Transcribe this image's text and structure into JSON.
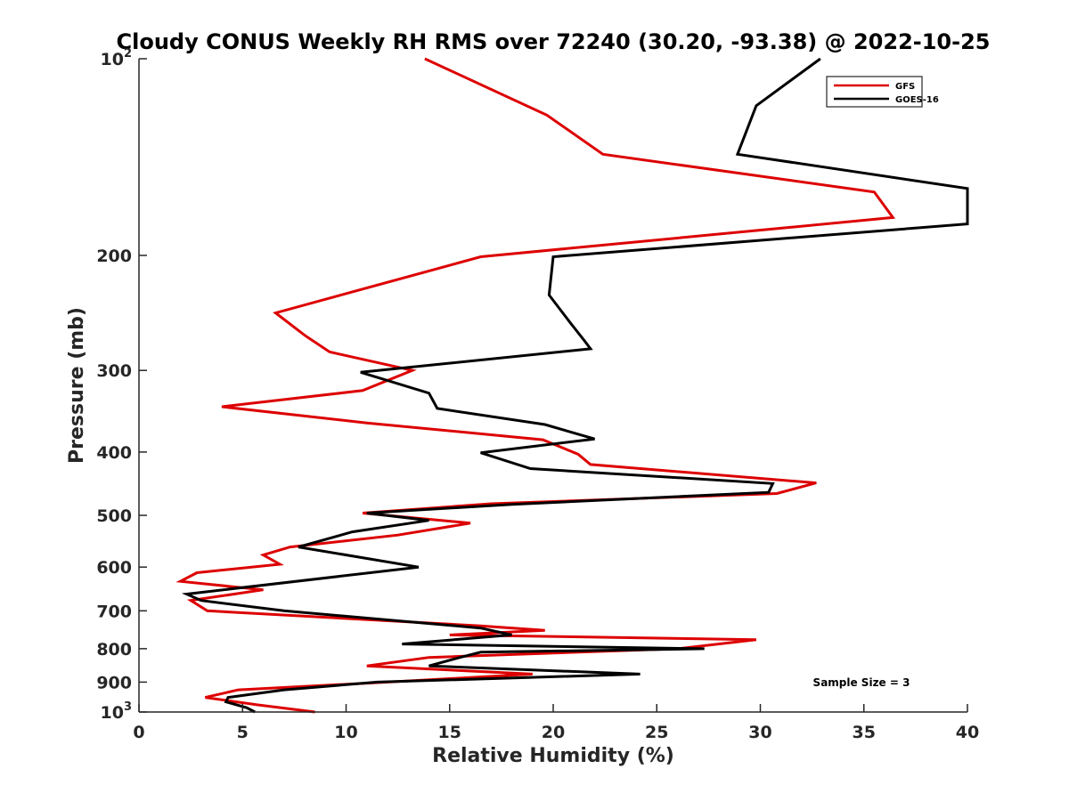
{
  "chart_data": {
    "type": "line",
    "title": "Cloudy CONUS Weekly RH RMS over 72240 (30.20, -93.38) @ 2022-10-25",
    "xlabel": "Relative Humidity (%)",
    "ylabel": "Pressure (mb)",
    "xlim": [
      0,
      40
    ],
    "ylim": [
      100,
      1000
    ],
    "yscale": "log",
    "y_reversed": true,
    "xticks": [
      0,
      5,
      10,
      15,
      20,
      25,
      30,
      35,
      40
    ],
    "xtick_labels": [
      "0",
      "5",
      "10",
      "15",
      "20",
      "25",
      "30",
      "35",
      "40"
    ],
    "yticks": [
      {
        "value": 100,
        "base": "10",
        "exp": "2"
      },
      {
        "value": 200,
        "base": "200",
        "exp": ""
      },
      {
        "value": 300,
        "base": "300",
        "exp": ""
      },
      {
        "value": 400,
        "base": "400",
        "exp": ""
      },
      {
        "value": 500,
        "base": "500",
        "exp": ""
      },
      {
        "value": 600,
        "base": "600",
        "exp": ""
      },
      {
        "value": 700,
        "base": "700",
        "exp": ""
      },
      {
        "value": 800,
        "base": "800",
        "exp": ""
      },
      {
        "value": 900,
        "base": "900",
        "exp": ""
      },
      {
        "value": 1000,
        "base": "10",
        "exp": "3"
      }
    ],
    "legend": {
      "location": "top-right"
    },
    "annotation": "Sample Size = 3",
    "series": [
      {
        "name": "GFS",
        "color": "#dd0000",
        "points": [
          [
            8.5,
            1000
          ],
          [
            5.7,
            975
          ],
          [
            3.2,
            950
          ],
          [
            4.8,
            925
          ],
          [
            12.0,
            900
          ],
          [
            19.0,
            875
          ],
          [
            11.0,
            850
          ],
          [
            14.0,
            825
          ],
          [
            26.0,
            800
          ],
          [
            29.8,
            775
          ],
          [
            15.0,
            762
          ],
          [
            19.6,
            750
          ],
          [
            16.5,
            738
          ],
          [
            3.3,
            700
          ],
          [
            2.5,
            675
          ],
          [
            6.0,
            650
          ],
          [
            2.0,
            631
          ],
          [
            2.8,
            612
          ],
          [
            6.8,
            594
          ],
          [
            6.0,
            575
          ],
          [
            7.3,
            559
          ],
          [
            12.5,
            536
          ],
          [
            16.0,
            514
          ],
          [
            10.8,
            496
          ],
          [
            17.0,
            480
          ],
          [
            30.8,
            463
          ],
          [
            32.7,
            446
          ],
          [
            21.8,
            418
          ],
          [
            21.2,
            403
          ],
          [
            19.5,
            383
          ],
          [
            11.0,
            361
          ],
          [
            4.0,
            341
          ],
          [
            10.8,
            322
          ],
          [
            13.2,
            300
          ],
          [
            9.2,
            281
          ],
          [
            8.0,
            265
          ],
          [
            6.6,
            245
          ],
          [
            16.5,
            201
          ],
          [
            36.4,
            175
          ],
          [
            35.5,
            160
          ],
          [
            22.4,
            140
          ],
          [
            19.7,
            122
          ],
          [
            13.8,
            100
          ]
        ]
      },
      {
        "name": "GOES-16",
        "color": "#000000",
        "points": [
          [
            5.6,
            1000
          ],
          [
            5.2,
            985
          ],
          [
            4.2,
            965
          ],
          [
            4.3,
            950
          ],
          [
            7.0,
            925
          ],
          [
            11.5,
            900
          ],
          [
            24.2,
            875
          ],
          [
            14.0,
            850
          ],
          [
            15.5,
            825
          ],
          [
            16.5,
            810
          ],
          [
            27.3,
            800
          ],
          [
            12.7,
            787
          ],
          [
            18.0,
            762
          ],
          [
            16.5,
            744
          ],
          [
            7.0,
            700
          ],
          [
            3.0,
            675
          ],
          [
            2.3,
            660
          ],
          [
            13.5,
            600
          ],
          [
            7.7,
            559
          ],
          [
            10.3,
            530
          ],
          [
            14.0,
            509
          ],
          [
            11.0,
            496
          ],
          [
            18.0,
            481
          ],
          [
            30.4,
            461
          ],
          [
            30.6,
            447
          ],
          [
            18.9,
            424
          ],
          [
            16.5,
            401
          ],
          [
            22.0,
            382
          ],
          [
            19.6,
            363
          ],
          [
            14.4,
            343
          ],
          [
            14.0,
            325
          ],
          [
            10.7,
            302
          ],
          [
            21.8,
            278
          ],
          [
            21.5,
            270
          ],
          [
            20.8,
            253
          ],
          [
            19.8,
            230
          ],
          [
            20.0,
            201
          ],
          [
            40.0,
            179
          ],
          [
            40.0,
            158
          ],
          [
            28.9,
            140
          ],
          [
            29.8,
            118
          ],
          [
            32.9,
            100
          ]
        ]
      }
    ]
  },
  "colors": {
    "axis": "#262626",
    "background": "#ffffff",
    "legend_border": "#262626"
  }
}
